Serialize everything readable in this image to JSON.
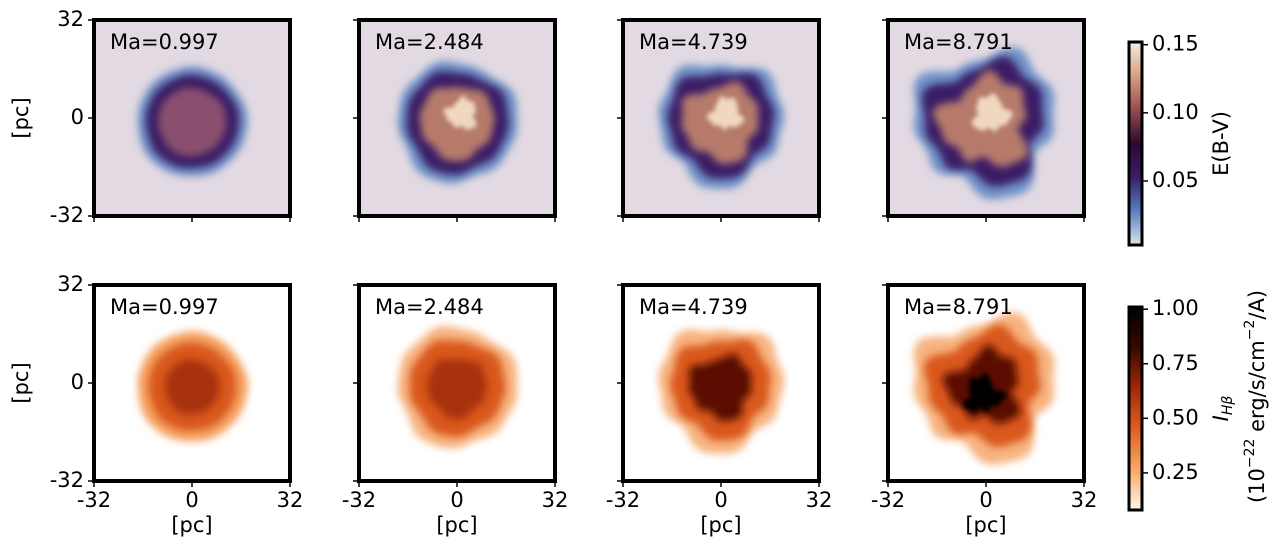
{
  "figure": {
    "panels": [
      "Ma=0.997",
      "Ma=2.484",
      "Ma=4.739",
      "Ma=8.791"
    ],
    "axis_label": "[pc]",
    "xlim": [
      -32,
      32
    ],
    "xticks": [
      -32,
      0,
      32
    ],
    "ylim": [
      -32,
      32
    ],
    "yticks": [
      -32,
      0,
      32
    ],
    "rows": [
      {
        "colorbar": {
          "label": "E(B-V)",
          "lim": [
            0.003,
            0.152
          ],
          "ticks": [
            {
              "value": 0.05,
              "label": "0.05"
            },
            {
              "value": 0.1,
              "label": "0.10"
            },
            {
              "value": 0.15,
              "label": "0.15"
            }
          ],
          "colors": [
            "#dde4ea",
            "#5a7fc0",
            "#3a1c6a",
            "#2a0a30",
            "#9a4a50",
            "#d8a080",
            "#f4ece2"
          ]
        }
      },
      {
        "colorbar": {
          "label_symbol": "I",
          "label_subscript": "Hβ",
          "label_units": [
            "(10",
            "−22",
            " erg/s/cm",
            "−2",
            "/A)"
          ],
          "lim": [
            0.08,
            1.01
          ],
          "ticks": [
            0.25,
            {
              "value": 0.5,
              "label": "0.50"
            },
            {
              "value": 0.75,
              "label": "0.75"
            },
            {
              "value": 1,
              "label": "1.00"
            }
          ],
          "colors": [
            "#fff6ee",
            "#f7a868",
            "#e0601a",
            "#a02a08",
            "#3a0800",
            "#000000"
          ]
        }
      }
    ]
  }
}
